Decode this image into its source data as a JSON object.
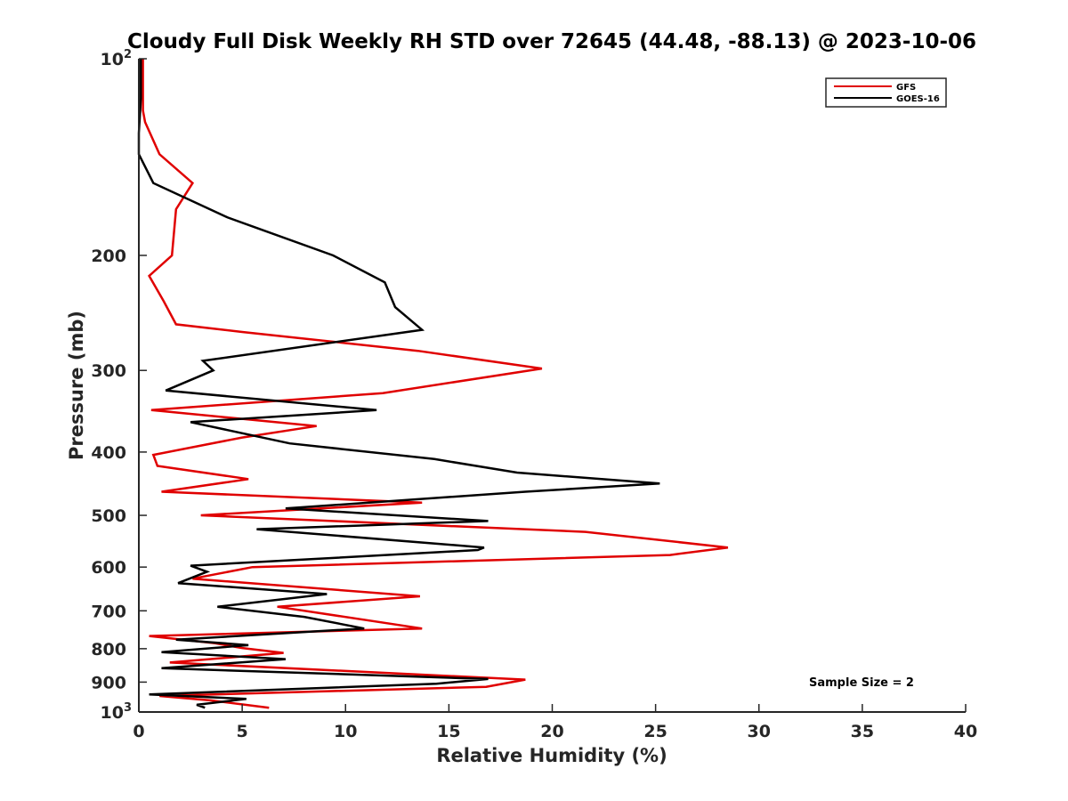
{
  "chart_data": {
    "type": "line",
    "title": "Cloudy Full Disk Weekly RH STD over 72645 (44.48, -88.13) @ 2023-10-06",
    "xlabel": "Relative Humidity (%)",
    "ylabel": "Pressure (mb)",
    "xlim": [
      0,
      40
    ],
    "ylim": [
      100,
      1000
    ],
    "yscale": "log",
    "y_reversed": true,
    "x_ticks": [
      "0",
      "5",
      "10",
      "15",
      "20",
      "25",
      "30",
      "35",
      "40"
    ],
    "y_ticks": [
      {
        "value": 100,
        "label": "10",
        "sup": "2"
      },
      {
        "value": 200,
        "label": "200",
        "sup": ""
      },
      {
        "value": 300,
        "label": "300",
        "sup": ""
      },
      {
        "value": 400,
        "label": "400",
        "sup": ""
      },
      {
        "value": 500,
        "label": "500",
        "sup": ""
      },
      {
        "value": 600,
        "label": "600",
        "sup": ""
      },
      {
        "value": 700,
        "label": "700",
        "sup": ""
      },
      {
        "value": 800,
        "label": "800",
        "sup": ""
      },
      {
        "value": 900,
        "label": "900",
        "sup": ""
      },
      {
        "value": 1000,
        "label": "10",
        "sup": "3"
      }
    ],
    "legend_position": "top-right",
    "grid": false,
    "annotation": "Sample Size = 2",
    "series": [
      {
        "name": "GFS",
        "color": "#e00000",
        "points": [
          [
            0.2,
            100
          ],
          [
            0.2,
            115
          ],
          [
            0.2,
            120
          ],
          [
            0.3,
            125
          ],
          [
            1.0,
            140
          ],
          [
            2.6,
            155
          ],
          [
            1.8,
            170
          ],
          [
            1.6,
            200
          ],
          [
            0.5,
            215
          ],
          [
            1.2,
            235
          ],
          [
            1.8,
            255
          ],
          [
            5.0,
            262
          ],
          [
            13.5,
            280
          ],
          [
            19.5,
            298
          ],
          [
            11.8,
            325
          ],
          [
            0.6,
            345
          ],
          [
            8.6,
            365
          ],
          [
            5.0,
            380
          ],
          [
            0.7,
            404
          ],
          [
            0.9,
            420
          ],
          [
            5.3,
            440
          ],
          [
            1.1,
            460
          ],
          [
            13.7,
            478
          ],
          [
            3.0,
            500
          ],
          [
            21.6,
            530
          ],
          [
            28.5,
            560
          ],
          [
            25.7,
            575
          ],
          [
            5.5,
            600
          ],
          [
            2.6,
            625
          ],
          [
            13.6,
            665
          ],
          [
            6.7,
            690
          ],
          [
            13.7,
            745
          ],
          [
            0.5,
            765
          ],
          [
            3.7,
            785
          ],
          [
            5.0,
            798
          ],
          [
            7.0,
            812
          ],
          [
            1.5,
            840
          ],
          [
            18.7,
            892
          ],
          [
            16.8,
            915
          ],
          [
            1.0,
            945
          ],
          [
            3.5,
            960
          ],
          [
            6.3,
            985
          ]
        ]
      },
      {
        "name": "GOES-16",
        "color": "#000000",
        "points": [
          [
            0.1,
            100
          ],
          [
            0.1,
            115
          ],
          [
            0.0,
            130
          ],
          [
            0.0,
            140
          ],
          [
            0.7,
            155
          ],
          [
            4.3,
            175
          ],
          [
            9.4,
            200
          ],
          [
            11.9,
            220
          ],
          [
            12.4,
            240
          ],
          [
            13.7,
            260
          ],
          [
            3.1,
            290
          ],
          [
            3.6,
            300
          ],
          [
            1.3,
            322
          ],
          [
            11.5,
            345
          ],
          [
            2.5,
            360
          ],
          [
            7.3,
            388
          ],
          [
            14.3,
            410
          ],
          [
            18.3,
            430
          ],
          [
            25.2,
            447
          ],
          [
            18.7,
            460
          ],
          [
            7.1,
            488
          ],
          [
            16.9,
            510
          ],
          [
            5.7,
            525
          ],
          [
            16.7,
            560
          ],
          [
            16.4,
            565
          ],
          [
            2.5,
            597
          ],
          [
            3.3,
            610
          ],
          [
            1.9,
            635
          ],
          [
            9.1,
            660
          ],
          [
            3.8,
            690
          ],
          [
            8.0,
            715
          ],
          [
            10.9,
            745
          ],
          [
            1.8,
            775
          ],
          [
            5.3,
            790
          ],
          [
            1.1,
            810
          ],
          [
            7.1,
            830
          ],
          [
            1.1,
            857
          ],
          [
            16.9,
            890
          ],
          [
            14.4,
            905
          ],
          [
            0.5,
            940
          ],
          [
            5.2,
            955
          ],
          [
            2.8,
            975
          ],
          [
            3.2,
            985
          ]
        ]
      }
    ]
  }
}
